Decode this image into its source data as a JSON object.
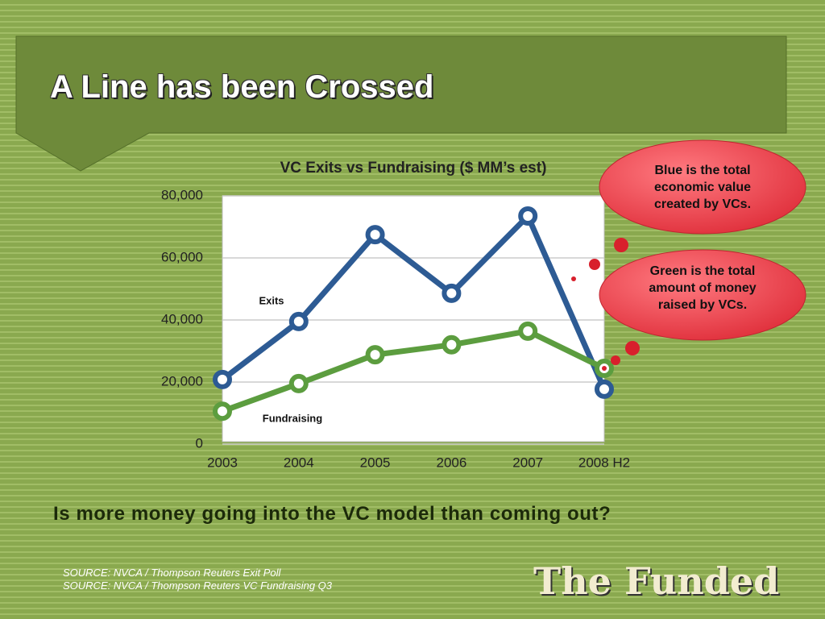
{
  "slide": {
    "title": "A Line has been Crossed",
    "question": "Is more money going into the VC model than coming out?",
    "sources": [
      "SOURCE: NVCA / Thompson Reuters Exit Poll",
      "SOURCE: NVCA / Thompson Reuters VC Fundraising Q3"
    ],
    "callouts": [
      "Blue is the total economic value created by VCs.",
      "Green is the total amount of money raised by VCs."
    ],
    "logo": "The Funded"
  },
  "chart_data": {
    "type": "line",
    "title": "VC Exits vs Fundraising ($ MM’s est)",
    "categories": [
      "2003",
      "2004",
      "2005",
      "2006",
      "2007",
      "2008 H2"
    ],
    "series": [
      {
        "name": "Exits",
        "color": "#2d5b94",
        "values": [
          20800,
          39500,
          67500,
          48600,
          73500,
          17700
        ]
      },
      {
        "name": "Fundraising",
        "color": "#5c9d3f",
        "values": [
          10600,
          19500,
          28800,
          32000,
          36400,
          24400
        ]
      }
    ],
    "ylim": [
      0,
      80000
    ],
    "yticks": [
      0,
      {
        "value": 20000,
        "label": "20,000"
      },
      {
        "value": 40000,
        "label": "40,000"
      },
      {
        "value": 60000,
        "label": "60,000"
      },
      {
        "value": 80000,
        "label": "80,000"
      }
    ],
    "grid": true
  }
}
